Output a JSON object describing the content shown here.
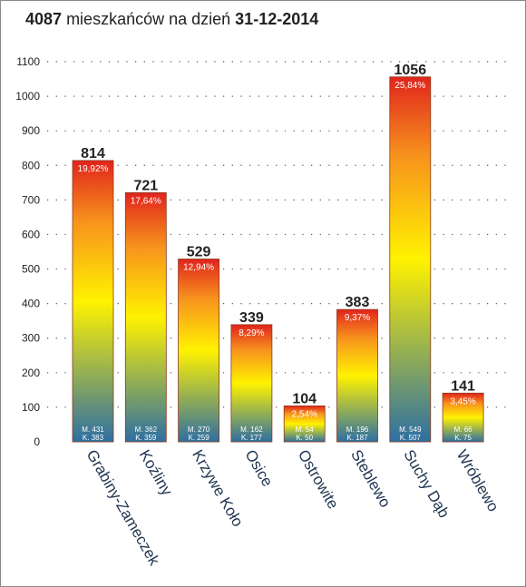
{
  "chart_data": {
    "type": "bar",
    "title": {
      "total": "4087",
      "text": "mieszkańców na dzień",
      "date": "31-12-2014"
    },
    "categories": [
      "Grabiny-Zameczek",
      "Koźliny",
      "Krzywe Koło",
      "Osice",
      "Ostrowite",
      "Steblewo",
      "Suchy Dąb",
      "Wróblewo"
    ],
    "values": [
      814,
      721,
      529,
      339,
      104,
      383,
      1056,
      141
    ],
    "percent_labels": [
      "19,92%",
      "17,64%",
      "12,94%",
      "8,29%",
      "2,54%",
      "9,37%",
      "25,84%",
      "3,45%"
    ],
    "male_labels": [
      "M. 431",
      "M. 362",
      "M. 270",
      "M. 162",
      "M. 54",
      "M. 196",
      "M. 549",
      "M. 66"
    ],
    "female_labels": [
      "K. 383",
      "K. 359",
      "K. 259",
      "K. 177",
      "K. 50",
      "K. 187",
      "K. 507",
      "K. 75"
    ],
    "yticks": [
      0,
      100,
      200,
      300,
      400,
      500,
      600,
      700,
      800,
      900,
      1000,
      1100
    ],
    "ylim": [
      0,
      1100
    ],
    "grid": true,
    "gradient_colors": [
      "#2e6fa3",
      "#fff200",
      "#f7941d",
      "#e1241d"
    ],
    "text_color": "#222222",
    "category_label_color": "#1f3550"
  }
}
